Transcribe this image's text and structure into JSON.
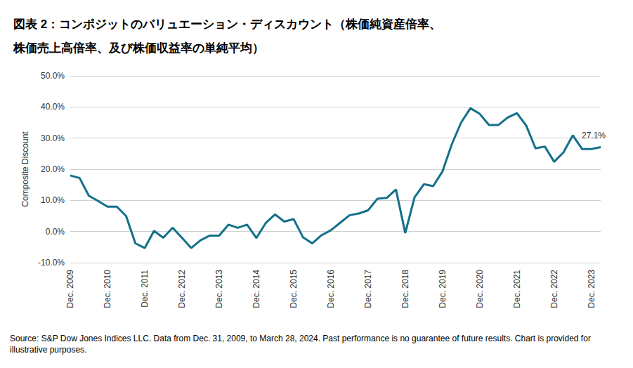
{
  "chart_data": {
    "type": "line",
    "title": "図表 2：コンポジットのバリュエーション・ディスカウント（株価純資産倍率、\n株価売上高倍率、及び株価収益率の単純平均）",
    "y_label": "Composite Discount",
    "source": "Source: S&P Dow Jones Indices LLC. Data from Dec. 31, 2009, to March 28, 2024. Past performance is no guarantee of future results. Chart is provided for illustrative purposes.",
    "categories": [
      "Dec. 2009",
      null,
      null,
      null,
      "Dec. 2010",
      null,
      null,
      null,
      "Dec. 2011",
      null,
      null,
      null,
      "Dec. 2012",
      null,
      null,
      null,
      "Dec. 2013",
      null,
      null,
      null,
      "Dec. 2014",
      null,
      null,
      null,
      "Dec. 2015",
      null,
      null,
      null,
      "Dec. 2016",
      null,
      null,
      null,
      "Dec. 2017",
      null,
      null,
      null,
      "Dec. 2018",
      null,
      null,
      null,
      "Dec. 2019",
      null,
      null,
      null,
      "Dec. 2020",
      null,
      null,
      null,
      "Dec. 2021",
      null,
      null,
      null,
      "Dec. 2022",
      null,
      null,
      null,
      "Dec. 2023",
      null
    ],
    "values": [
      18.0,
      17.2,
      11.5,
      9.8,
      8.0,
      8.0,
      5.0,
      -3.8,
      -5.3,
      0.2,
      -2.0,
      1.2,
      -2.0,
      -5.3,
      -2.8,
      -1.3,
      -1.3,
      2.2,
      1.2,
      2.2,
      -2.1,
      2.7,
      5.5,
      3.2,
      4.0,
      -1.8,
      -3.8,
      -1.2,
      0.4,
      2.8,
      5.2,
      5.8,
      6.8,
      10.5,
      10.8,
      13.5,
      -0.5,
      11.0,
      15.2,
      14.6,
      19.3,
      28.0,
      35.0,
      39.6,
      37.8,
      34.2,
      34.2,
      36.6,
      38.0,
      34.0,
      26.7,
      27.3,
      22.4,
      25.4,
      30.9,
      26.5,
      26.5,
      27.1
    ],
    "color": "#13708a",
    "annotations": [
      {
        "text": "27.1%",
        "value": 27.1
      }
    ],
    "ylim": [
      -10,
      50
    ],
    "yticks": [
      {
        "value": -10,
        "label": "-10.0%"
      },
      {
        "value": 0,
        "label": "0.0%"
      },
      {
        "value": 10,
        "label": "10.0%"
      },
      {
        "value": 20,
        "label": "20.0%"
      },
      {
        "value": 30,
        "label": "30.0%"
      },
      {
        "value": 40,
        "label": "40.0%"
      },
      {
        "value": 50,
        "label": "50.0%"
      }
    ],
    "grid": true
  }
}
